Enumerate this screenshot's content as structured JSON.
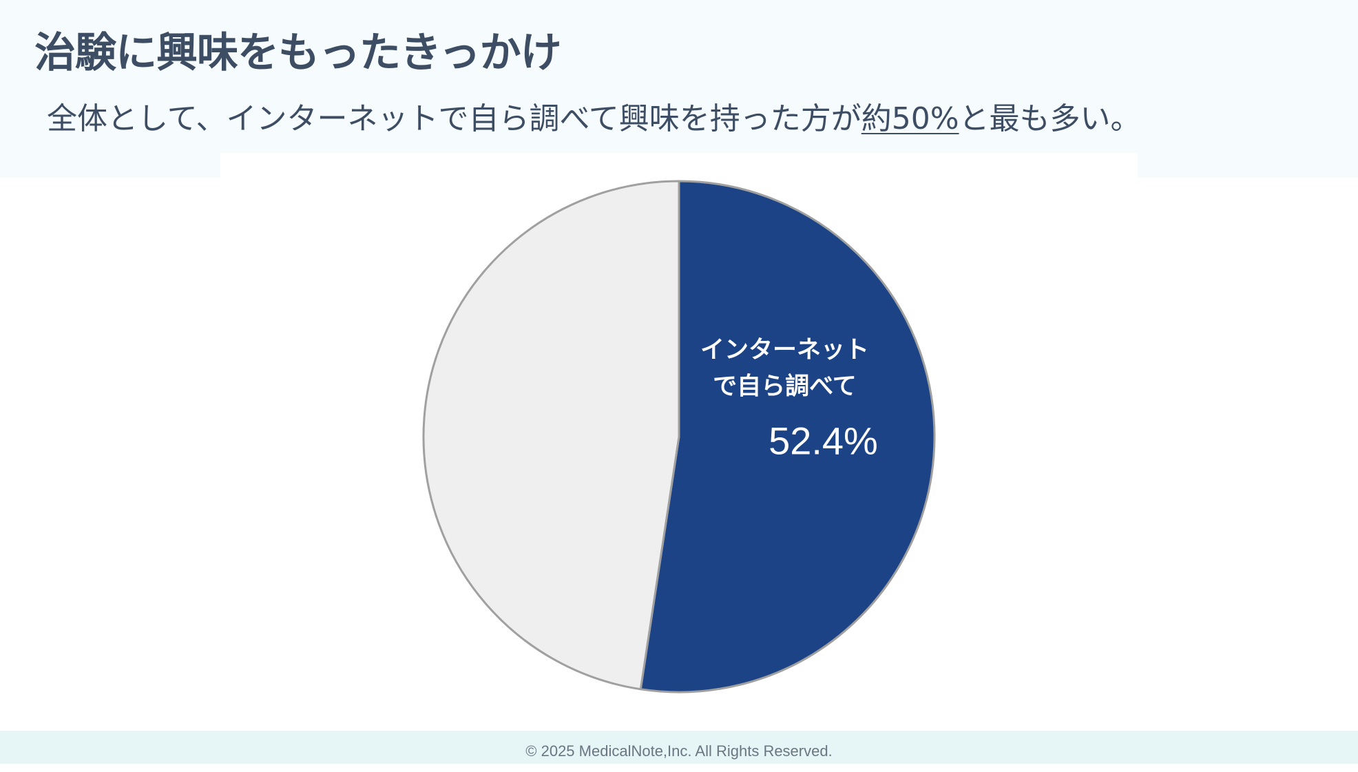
{
  "page": {
    "title": "治験に興味をもったきっかけ",
    "subtitle_before": "全体として、インターネットで自ら調べて興味を持った方が",
    "subtitle_highlight": "約50%",
    "subtitle_after": "と最も多い。",
    "footer": "© 2025 MedicalNote,Inc. All Rights Reserved."
  },
  "colors": {
    "title": "#3d4d63",
    "primary_slice": "#1c4386",
    "other_slice": "#efefef",
    "slice_border": "#a0a0a0",
    "label": "#ffffff"
  },
  "chart_data": {
    "type": "pie",
    "slices": [
      {
        "label_lines": [
          "インターネット",
          "で自ら調べて"
        ],
        "value": 52.4,
        "value_label": "52.4%",
        "color": "#1c4386"
      },
      {
        "label_lines": [],
        "value": 47.6,
        "value_label": "",
        "color": "#efefef"
      }
    ],
    "start_angle_deg": 0,
    "direction": "clockwise"
  }
}
